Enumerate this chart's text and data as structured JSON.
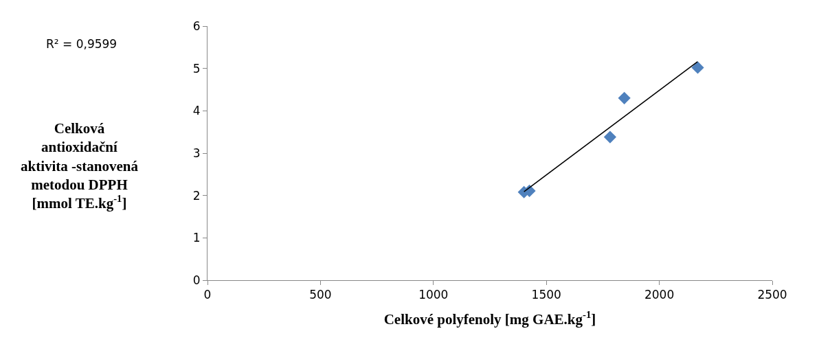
{
  "chart_data": {
    "type": "scatter",
    "xlabel": "Celkové polyfenoly [mg GAE.kg$^{-1}$]",
    "ylabel": "Celková\nantioxidační\naktivita -stanovená\nmetodou DPPH\n[mmol TE.kg$^{-1}$]",
    "annotations": [
      "R² = 0,9599"
    ],
    "series": [
      {
        "color": "#4f81bd",
        "marker": "diamond",
        "x": [
          1401,
          1425,
          1782,
          1845,
          2170
        ],
        "values": [
          2.08,
          2.11,
          3.38,
          4.3,
          5.02
        ]
      },
      {
        "type": "line",
        "color": "#000000",
        "marker": "none",
        "line_style": "solid",
        "x": [
          1401,
          2169
        ],
        "values": [
          2.09,
          5.16
        ]
      }
    ],
    "xlim": [
      0,
      2500
    ],
    "xticks": [
      0,
      500,
      1000,
      1500,
      2000,
      2500
    ],
    "ylim": [
      0,
      6
    ],
    "yticks": [
      0,
      1,
      2,
      3,
      4,
      5,
      6
    ]
  }
}
